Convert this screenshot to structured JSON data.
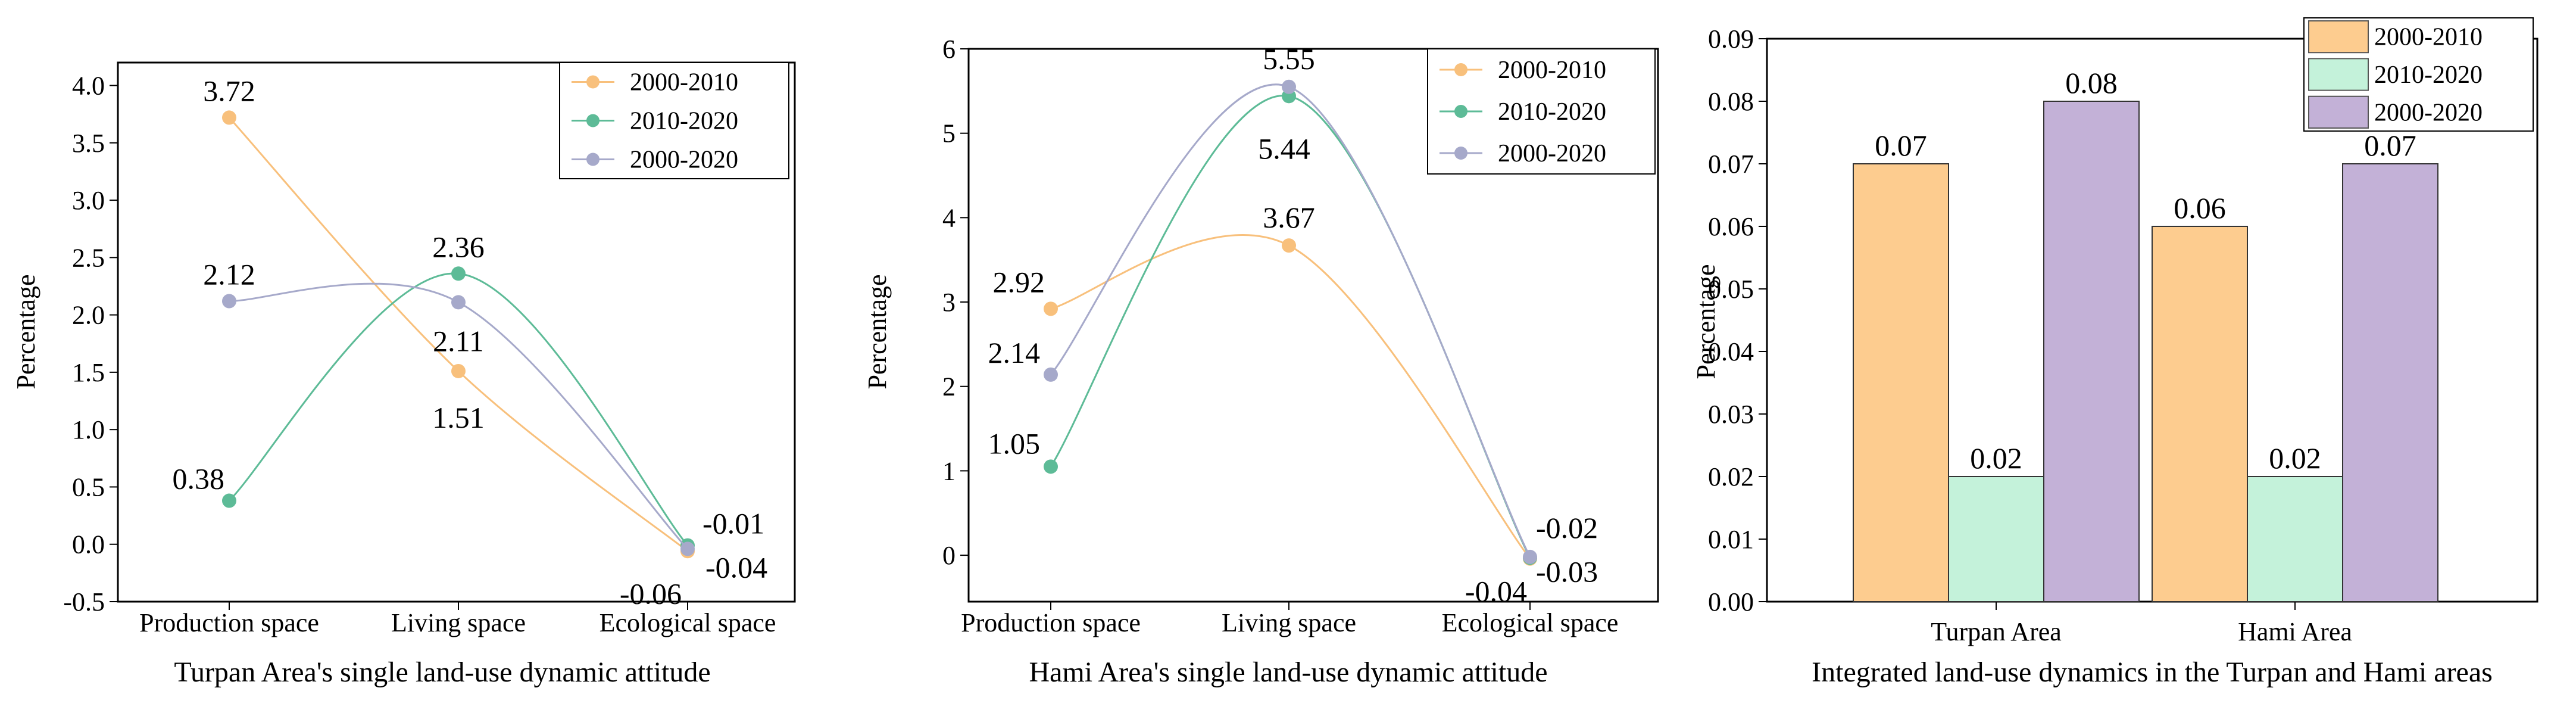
{
  "chart_data": [
    {
      "type": "line",
      "title": "Turpan Area's single land-use dynamic attitude",
      "xlabel": "",
      "ylabel": "Percentage",
      "categories": [
        "Production space",
        "Living space",
        "Ecological space"
      ],
      "ylim": [
        -0.5,
        4.2
      ],
      "yticks": [
        "-0.5",
        "0.0",
        "0.5",
        "1.0",
        "1.5",
        "2.0",
        "2.5",
        "3.0",
        "3.5",
        "4.0"
      ],
      "legend_position": "top-right",
      "series": [
        {
          "name": "2000-2010",
          "color": "#F8C07C",
          "values": [
            3.72,
            1.51,
            -0.06
          ],
          "labels": [
            "3.72",
            "1.51",
            "-0.06"
          ]
        },
        {
          "name": "2010-2020",
          "color": "#5DBB97",
          "values": [
            0.38,
            2.36,
            -0.01
          ],
          "labels": [
            "0.38",
            "2.36",
            "-0.01"
          ]
        },
        {
          "name": "2000-2020",
          "color": "#A6A9CA",
          "values": [
            2.12,
            2.11,
            -0.04
          ],
          "labels": [
            "2.12",
            "2.11",
            "-0.04"
          ]
        }
      ]
    },
    {
      "type": "line",
      "title": "Hami Area's single land-use dynamic attitude",
      "xlabel": "",
      "ylabel": "Percentage",
      "categories": [
        "Production space",
        "Living space",
        "Ecological space"
      ],
      "ylim": [
        -0.55,
        6
      ],
      "yticks": [
        "0",
        "1",
        "2",
        "3",
        "4",
        "5",
        "6"
      ],
      "legend_position": "top-right",
      "series": [
        {
          "name": "2000-2010",
          "color": "#F8C07C",
          "values": [
            2.92,
            3.67,
            -0.04
          ],
          "labels": [
            "2.92",
            "3.67",
            "-0.04"
          ]
        },
        {
          "name": "2010-2020",
          "color": "#5DBB97",
          "values": [
            1.05,
            5.44,
            -0.03
          ],
          "labels": [
            "1.05",
            "5.44",
            "-0.03"
          ]
        },
        {
          "name": "2000-2020",
          "color": "#A6A9CA",
          "values": [
            2.14,
            5.55,
            -0.02
          ],
          "labels": [
            "2.14",
            "5.55",
            "-0.02"
          ]
        }
      ]
    },
    {
      "type": "bar",
      "title": "Integrated land-use dynamics in the Turpan and Hami areas",
      "xlabel": "",
      "ylabel": "Percentage",
      "categories": [
        "Turpan Area",
        "Hami Area"
      ],
      "ylim": [
        0,
        0.09
      ],
      "yticks": [
        "0.00",
        "0.01",
        "0.02",
        "0.03",
        "0.04",
        "0.05",
        "0.06",
        "0.07",
        "0.08",
        "0.09"
      ],
      "legend_position": "top-right",
      "series": [
        {
          "name": "2000-2010",
          "color": "#FDCC8F",
          "values": [
            0.07,
            0.06
          ],
          "labels": [
            "0.07",
            "0.06"
          ]
        },
        {
          "name": "2010-2020",
          "color": "#C4F2DA",
          "values": [
            0.02,
            0.02
          ],
          "labels": [
            "0.02",
            "0.02"
          ]
        },
        {
          "name": "2000-2020",
          "color": "#C3B1D7",
          "values": [
            0.08,
            0.07
          ],
          "labels": [
            "0.08",
            "0.07"
          ]
        }
      ]
    }
  ]
}
